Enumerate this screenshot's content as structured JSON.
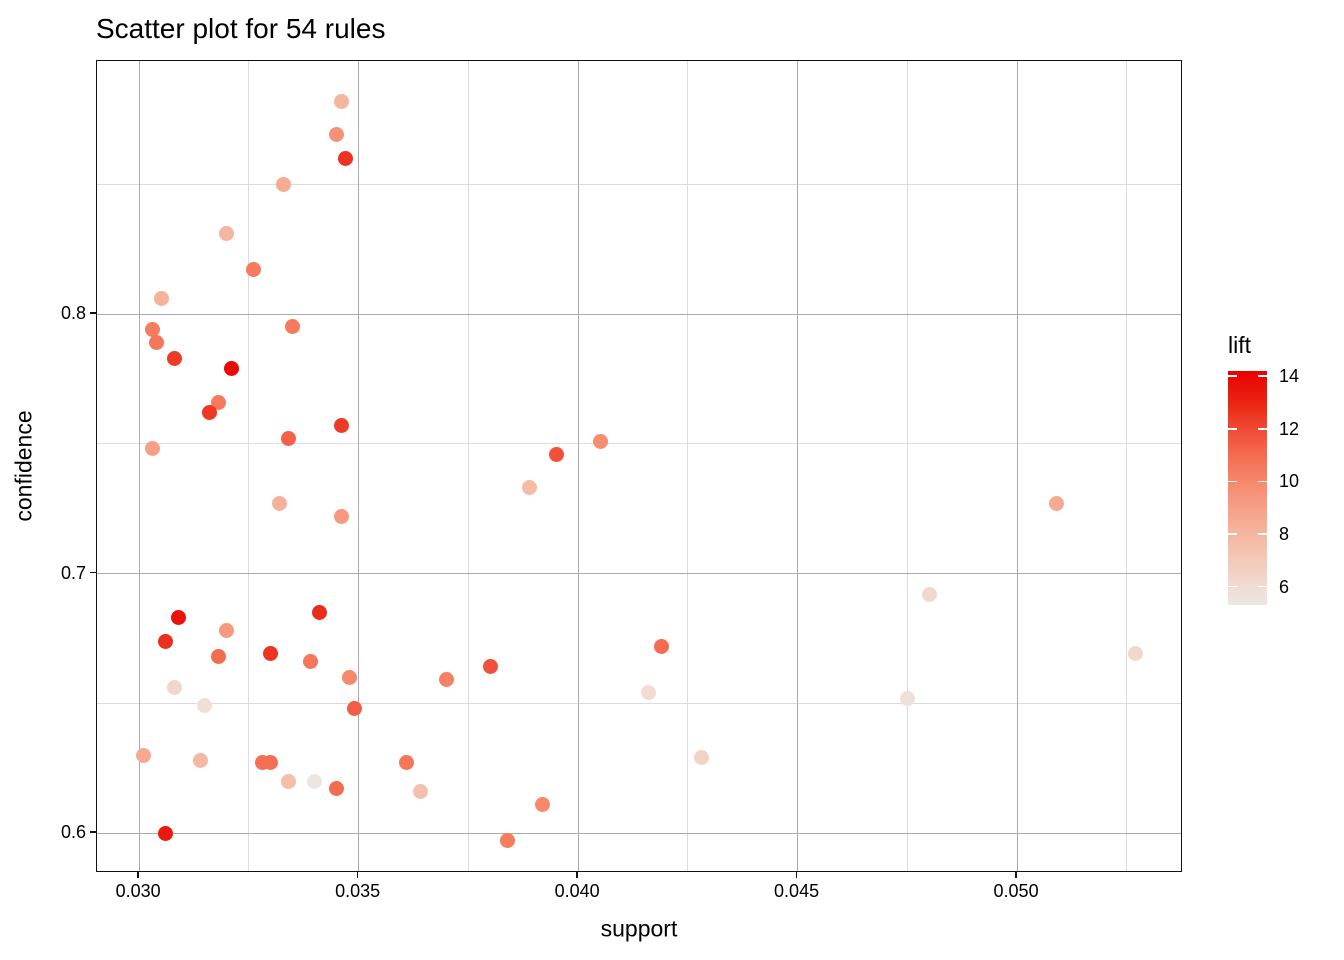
{
  "title": "Scatter plot for 54 rules",
  "legend": {
    "title": "lift",
    "domain": [
      5.3,
      14.2
    ],
    "ticks": [
      {
        "value": 14,
        "label": "14"
      },
      {
        "value": 12,
        "label": "12"
      },
      {
        "value": 10,
        "label": "10"
      },
      {
        "value": 8,
        "label": "8"
      },
      {
        "value": 6,
        "label": "6"
      }
    ],
    "gradient_stops": [
      {
        "lift": 5.3,
        "color": "#ECE7E3"
      },
      {
        "lift": 6.0,
        "color": "#F0DCD1"
      },
      {
        "lift": 7.0,
        "color": "#F3C9B8"
      },
      {
        "lift": 8.0,
        "color": "#F5B6A0"
      },
      {
        "lift": 9.0,
        "color": "#F6A086"
      },
      {
        "lift": 10.0,
        "color": "#F6886B"
      },
      {
        "lift": 11.0,
        "color": "#F46C50"
      },
      {
        "lift": 12.0,
        "color": "#F04A34"
      },
      {
        "lift": 13.0,
        "color": "#EB2513"
      },
      {
        "lift": 14.2,
        "color": "#E90000"
      }
    ]
  },
  "chart_data": {
    "type": "scatter",
    "title": "Scatter plot for 54 rules",
    "xlabel": "support",
    "ylabel": "confidence",
    "color_label": "lift",
    "xlim": [
      0.02904,
      0.05378
    ],
    "ylim": [
      0.5846,
      0.8975
    ],
    "color_range": [
      5.3,
      14.2
    ],
    "grid": true,
    "x_major_ticks": [
      {
        "value": 0.03,
        "label": "0.030"
      },
      {
        "value": 0.035,
        "label": "0.035"
      },
      {
        "value": 0.04,
        "label": "0.040"
      },
      {
        "value": 0.045,
        "label": "0.045"
      },
      {
        "value": 0.05,
        "label": "0.050"
      }
    ],
    "x_minor_ticks": [
      0.0325,
      0.0375,
      0.0425,
      0.0475,
      0.0525
    ],
    "y_major_ticks": [
      {
        "value": 0.8,
        "label": "0.8"
      },
      {
        "value": 0.7,
        "label": "0.7"
      },
      {
        "value": 0.6,
        "label": "0.6"
      }
    ],
    "y_minor_ticks": [
      0.85,
      0.75,
      0.65
    ],
    "points": [
      {
        "support": 0.0346,
        "confidence": 0.882,
        "lift": 8.0
      },
      {
        "support": 0.0345,
        "confidence": 0.869,
        "lift": 9.6
      },
      {
        "support": 0.0347,
        "confidence": 0.86,
        "lift": 12.6
      },
      {
        "support": 0.0333,
        "confidence": 0.85,
        "lift": 8.5
      },
      {
        "support": 0.032,
        "confidence": 0.831,
        "lift": 8.0
      },
      {
        "support": 0.0326,
        "confidence": 0.817,
        "lift": 10.5
      },
      {
        "support": 0.0305,
        "confidence": 0.806,
        "lift": 8.2
      },
      {
        "support": 0.0303,
        "confidence": 0.794,
        "lift": 10.4
      },
      {
        "support": 0.0304,
        "confidence": 0.789,
        "lift": 10.6
      },
      {
        "support": 0.0335,
        "confidence": 0.795,
        "lift": 10.5
      },
      {
        "support": 0.0308,
        "confidence": 0.783,
        "lift": 12.4
      },
      {
        "support": 0.0321,
        "confidence": 0.779,
        "lift": 13.9
      },
      {
        "support": 0.0318,
        "confidence": 0.766,
        "lift": 10.5
      },
      {
        "support": 0.0316,
        "confidence": 0.762,
        "lift": 12.5
      },
      {
        "support": 0.0346,
        "confidence": 0.757,
        "lift": 12.4
      },
      {
        "support": 0.0334,
        "confidence": 0.752,
        "lift": 11.3
      },
      {
        "support": 0.0303,
        "confidence": 0.748,
        "lift": 9.0
      },
      {
        "support": 0.0332,
        "confidence": 0.727,
        "lift": 8.2
      },
      {
        "support": 0.0346,
        "confidence": 0.722,
        "lift": 9.3
      },
      {
        "support": 0.0405,
        "confidence": 0.751,
        "lift": 9.8
      },
      {
        "support": 0.0395,
        "confidence": 0.746,
        "lift": 11.8
      },
      {
        "support": 0.0389,
        "confidence": 0.733,
        "lift": 7.7
      },
      {
        "support": 0.0509,
        "confidence": 0.727,
        "lift": 8.6
      },
      {
        "support": 0.0309,
        "confidence": 0.683,
        "lift": 13.6
      },
      {
        "support": 0.032,
        "confidence": 0.678,
        "lift": 9.3
      },
      {
        "support": 0.0306,
        "confidence": 0.674,
        "lift": 12.7
      },
      {
        "support": 0.0318,
        "confidence": 0.668,
        "lift": 11.0
      },
      {
        "support": 0.0341,
        "confidence": 0.685,
        "lift": 12.8
      },
      {
        "support": 0.033,
        "confidence": 0.669,
        "lift": 12.6
      },
      {
        "support": 0.0339,
        "confidence": 0.666,
        "lift": 10.6
      },
      {
        "support": 0.0348,
        "confidence": 0.66,
        "lift": 10.0
      },
      {
        "support": 0.037,
        "confidence": 0.659,
        "lift": 10.2
      },
      {
        "support": 0.0308,
        "confidence": 0.656,
        "lift": 6.3
      },
      {
        "support": 0.0315,
        "confidence": 0.649,
        "lift": 5.8
      },
      {
        "support": 0.0349,
        "confidence": 0.648,
        "lift": 11.4
      },
      {
        "support": 0.0301,
        "confidence": 0.63,
        "lift": 8.6
      },
      {
        "support": 0.0314,
        "confidence": 0.628,
        "lift": 7.9
      },
      {
        "support": 0.0328,
        "confidence": 0.627,
        "lift": 10.9
      },
      {
        "support": 0.033,
        "confidence": 0.627,
        "lift": 10.9
      },
      {
        "support": 0.0334,
        "confidence": 0.62,
        "lift": 7.6
      },
      {
        "support": 0.034,
        "confidence": 0.62,
        "lift": 5.4
      },
      {
        "support": 0.0345,
        "confidence": 0.617,
        "lift": 11.0
      },
      {
        "support": 0.0361,
        "confidence": 0.627,
        "lift": 10.6
      },
      {
        "support": 0.0364,
        "confidence": 0.616,
        "lift": 7.5
      },
      {
        "support": 0.0306,
        "confidence": 0.6,
        "lift": 13.4
      },
      {
        "support": 0.0419,
        "confidence": 0.672,
        "lift": 11.0
      },
      {
        "support": 0.038,
        "confidence": 0.664,
        "lift": 11.8
      },
      {
        "support": 0.0416,
        "confidence": 0.654,
        "lift": 6.0
      },
      {
        "support": 0.0428,
        "confidence": 0.629,
        "lift": 6.4
      },
      {
        "support": 0.0392,
        "confidence": 0.611,
        "lift": 10.0
      },
      {
        "support": 0.0384,
        "confidence": 0.597,
        "lift": 10.4
      },
      {
        "support": 0.048,
        "confidence": 0.692,
        "lift": 6.2
      },
      {
        "support": 0.0527,
        "confidence": 0.669,
        "lift": 6.2
      },
      {
        "support": 0.0475,
        "confidence": 0.652,
        "lift": 5.7
      }
    ]
  }
}
